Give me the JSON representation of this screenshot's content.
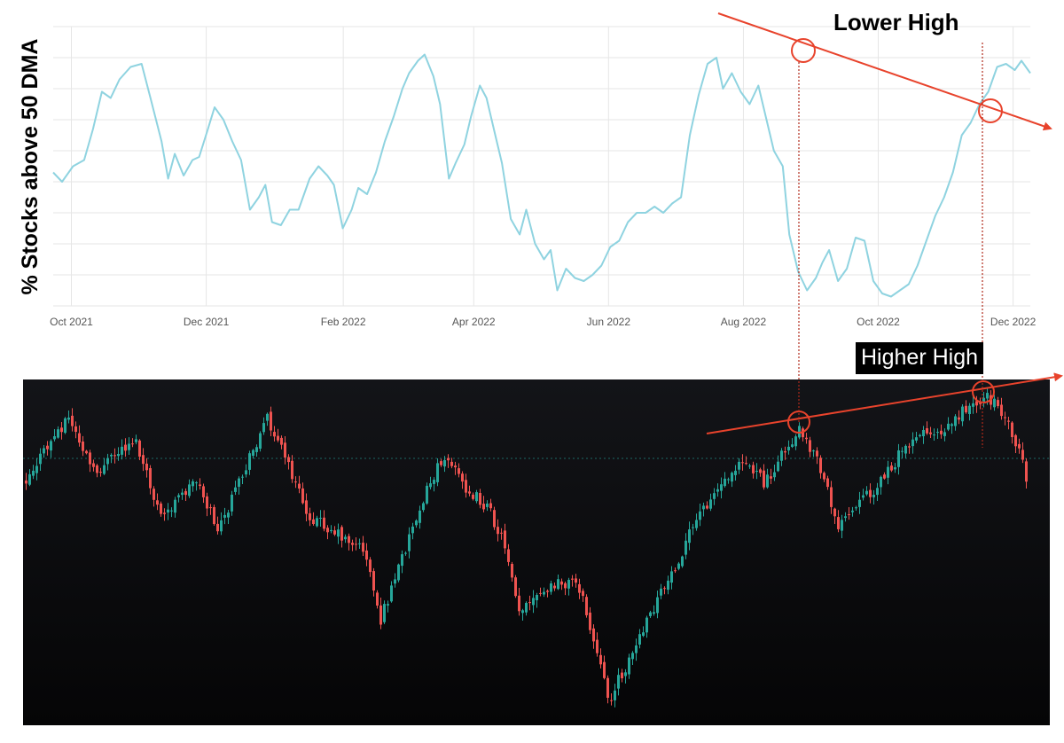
{
  "chart_data": [
    {
      "type": "line",
      "ylabel": "% Stocks above 50 DMA",
      "title": "",
      "grid": true,
      "xticks": [
        "Oct 2021",
        "Dec 2021",
        "Feb 2022",
        "Apr 2022",
        "Jun 2022",
        "Aug 2022",
        "Oct 2022",
        "Dec 2022"
      ],
      "xrange": [
        "2021-09-30",
        "2022-12-16"
      ],
      "yrange": [
        5,
        95
      ],
      "series": [
        {
          "color": "#8fd3e0",
          "points": [
            [
              "2021-09-30",
              48
            ],
            [
              "2021-10-04",
              45
            ],
            [
              "2021-10-09",
              50
            ],
            [
              "2021-10-14",
              52
            ],
            [
              "2021-10-18",
              62
            ],
            [
              "2021-10-22",
              74
            ],
            [
              "2021-10-26",
              72
            ],
            [
              "2021-10-30",
              78
            ],
            [
              "2021-11-04",
              82
            ],
            [
              "2021-11-09",
              83
            ],
            [
              "2021-11-13",
              72
            ],
            [
              "2021-11-18",
              58
            ],
            [
              "2021-11-21",
              46
            ],
            [
              "2021-11-24",
              54
            ],
            [
              "2021-11-28",
              47
            ],
            [
              "2021-12-02",
              52
            ],
            [
              "2021-12-05",
              53
            ],
            [
              "2021-12-09",
              62
            ],
            [
              "2021-12-12",
              69
            ],
            [
              "2021-12-16",
              65
            ],
            [
              "2021-12-20",
              58
            ],
            [
              "2021-12-24",
              52
            ],
            [
              "2021-12-28",
              36
            ],
            [
              "2022-01-01",
              40
            ],
            [
              "2022-01-04",
              44
            ],
            [
              "2022-01-07",
              32
            ],
            [
              "2022-01-11",
              31
            ],
            [
              "2022-01-15",
              36
            ],
            [
              "2022-01-19",
              36
            ],
            [
              "2022-01-24",
              46
            ],
            [
              "2022-01-28",
              50
            ],
            [
              "2022-02-01",
              47
            ],
            [
              "2022-02-04",
              44
            ],
            [
              "2022-02-08",
              30
            ],
            [
              "2022-02-12",
              36
            ],
            [
              "2022-02-15",
              43
            ],
            [
              "2022-02-19",
              41
            ],
            [
              "2022-02-23",
              48
            ],
            [
              "2022-02-27",
              58
            ],
            [
              "2022-03-03",
              66
            ],
            [
              "2022-03-07",
              75
            ],
            [
              "2022-03-10",
              80
            ],
            [
              "2022-03-14",
              84
            ],
            [
              "2022-03-17",
              86
            ],
            [
              "2022-03-21",
              79
            ],
            [
              "2022-03-24",
              70
            ],
            [
              "2022-03-28",
              46
            ],
            [
              "2022-03-31",
              51
            ],
            [
              "2022-04-04",
              57
            ],
            [
              "2022-04-07",
              66
            ],
            [
              "2022-04-11",
              76
            ],
            [
              "2022-04-14",
              72
            ],
            [
              "2022-04-18",
              60
            ],
            [
              "2022-04-21",
              51
            ],
            [
              "2022-04-25",
              33
            ],
            [
              "2022-04-29",
              28
            ],
            [
              "2022-05-02",
              36
            ],
            [
              "2022-05-06",
              25
            ],
            [
              "2022-05-10",
              20
            ],
            [
              "2022-05-13",
              23
            ],
            [
              "2022-05-16",
              10
            ],
            [
              "2022-05-20",
              17
            ],
            [
              "2022-05-24",
              14
            ],
            [
              "2022-05-28",
              13
            ],
            [
              "2022-06-01",
              15
            ],
            [
              "2022-06-05",
              18
            ],
            [
              "2022-06-09",
              24
            ],
            [
              "2022-06-13",
              26
            ],
            [
              "2022-06-17",
              32
            ],
            [
              "2022-06-21",
              35
            ],
            [
              "2022-06-25",
              35
            ],
            [
              "2022-06-29",
              37
            ],
            [
              "2022-07-03",
              35
            ],
            [
              "2022-07-07",
              38
            ],
            [
              "2022-07-11",
              40
            ],
            [
              "2022-07-15",
              60
            ],
            [
              "2022-07-19",
              73
            ],
            [
              "2022-07-23",
              83
            ],
            [
              "2022-07-27",
              85
            ],
            [
              "2022-07-30",
              75
            ],
            [
              "2022-08-03",
              80
            ],
            [
              "2022-08-07",
              74
            ],
            [
              "2022-08-11",
              70
            ],
            [
              "2022-08-15",
              76
            ],
            [
              "2022-08-18",
              67
            ],
            [
              "2022-08-22",
              55
            ],
            [
              "2022-08-26",
              50
            ],
            [
              "2022-08-29",
              28
            ],
            [
              "2022-09-02",
              16
            ],
            [
              "2022-09-06",
              10
            ],
            [
              "2022-09-10",
              14
            ],
            [
              "2022-09-13",
              19
            ],
            [
              "2022-09-16",
              23
            ],
            [
              "2022-09-20",
              13
            ],
            [
              "2022-09-24",
              17
            ],
            [
              "2022-09-28",
              27
            ],
            [
              "2022-10-02",
              26
            ],
            [
              "2022-10-06",
              13
            ],
            [
              "2022-10-10",
              9
            ],
            [
              "2022-10-14",
              8
            ],
            [
              "2022-10-18",
              10
            ],
            [
              "2022-10-22",
              12
            ],
            [
              "2022-10-26",
              18
            ],
            [
              "2022-10-30",
              26
            ],
            [
              "2022-11-03",
              34
            ],
            [
              "2022-11-07",
              40
            ],
            [
              "2022-11-11",
              48
            ],
            [
              "2022-11-15",
              60
            ],
            [
              "2022-11-19",
              64
            ],
            [
              "2022-11-23",
              70
            ],
            [
              "2022-11-27",
              74
            ],
            [
              "2022-12-01",
              82
            ],
            [
              "2022-12-05",
              83
            ],
            [
              "2022-12-09",
              81
            ],
            [
              "2022-12-12",
              84
            ],
            [
              "2022-12-16",
              80
            ]
          ]
        }
      ]
    },
    {
      "type": "candlestick",
      "background": "#131418",
      "up_color": "#26a69a",
      "down_color": "#ef5350",
      "annotations": [
        "Lower High",
        "Higher High"
      ]
    }
  ]
}
